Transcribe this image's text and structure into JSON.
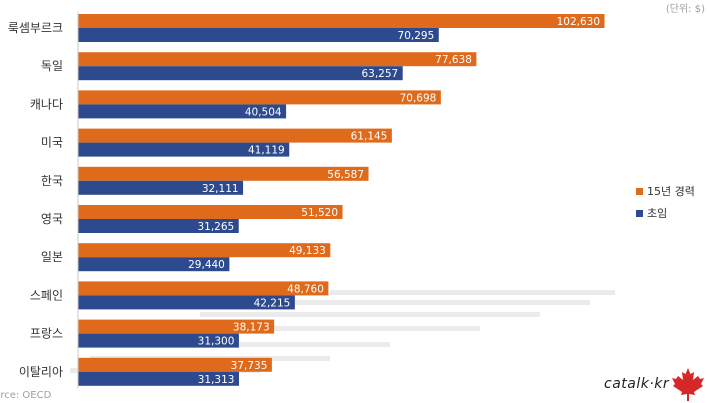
{
  "unit_note": "(단위: $)",
  "source_note": "urce: OECD",
  "brand": "catalk·kr",
  "legend": [
    {
      "label": "15년 경력",
      "color": "#E06A1B"
    },
    {
      "label": "초임",
      "color": "#2E4A8E"
    }
  ],
  "chart_data": {
    "type": "bar",
    "orientation": "horizontal",
    "categories": [
      "룩셈부르크",
      "독일",
      "캐나다",
      "미국",
      "한국",
      "영국",
      "일본",
      "스페인",
      "프랑스",
      "이탈리아"
    ],
    "series": [
      {
        "name": "15년 경력",
        "color": "#E06A1B",
        "values": [
          102630,
          77638,
          70698,
          61145,
          56587,
          51520,
          49133,
          48760,
          38173,
          37735
        ],
        "labels": [
          "102,630",
          "77,638",
          "70,698",
          "61,145",
          "56,587",
          "51,520",
          "49,133",
          "48,760",
          "38,173",
          "37,735"
        ]
      },
      {
        "name": "초임",
        "color": "#2E4A8E",
        "values": [
          70295,
          63257,
          40504,
          41119,
          32111,
          31265,
          29440,
          42215,
          31300,
          31313
        ],
        "labels": [
          "70,295",
          "63,257",
          "40,504",
          "41,119",
          "32,111",
          "31,265",
          "29,440",
          "42,215",
          "31,300",
          "31,313"
        ]
      }
    ],
    "xlim": [
      0,
      110000
    ],
    "grid": false,
    "legend_position": "right"
  }
}
